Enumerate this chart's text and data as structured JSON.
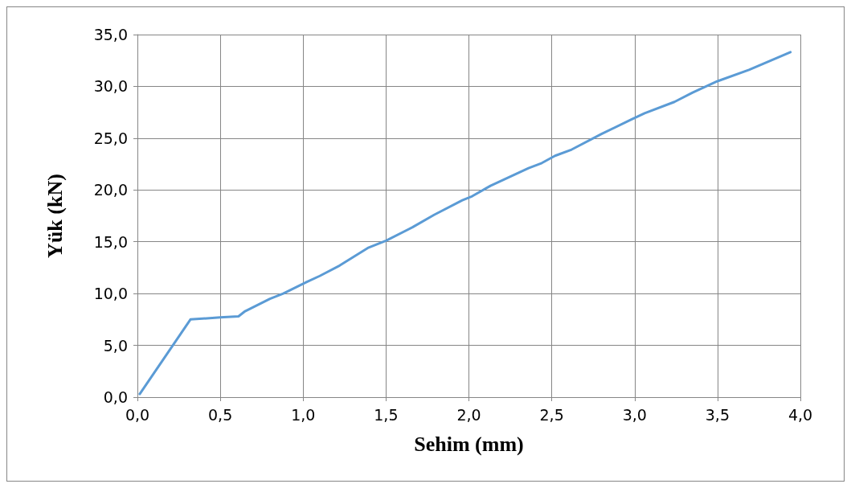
{
  "chart_data": {
    "type": "line",
    "xlabel": "Sehim (mm)",
    "ylabel": "Yük (kN)",
    "series": [
      {
        "color": "#5b9bd5",
        "x": [
          0.014,
          0.32,
          0.5,
          0.61,
          0.65,
          0.8,
          0.88,
          1.02,
          1.1,
          1.22,
          1.39,
          1.5,
          1.66,
          1.79,
          1.96,
          2.02,
          2.13,
          2.36,
          2.44,
          2.52,
          2.62,
          2.8,
          2.98,
          3.06,
          3.24,
          3.35,
          3.5,
          3.69,
          3.94
        ],
        "values": [
          0.3,
          7.5,
          7.7,
          7.8,
          8.3,
          9.5,
          10.0,
          11.1,
          11.7,
          12.7,
          14.4,
          15.1,
          16.4,
          17.6,
          19.0,
          19.4,
          20.4,
          22.1,
          22.6,
          23.3,
          23.9,
          25.4,
          26.8,
          27.4,
          28.5,
          29.4,
          30.5,
          31.6,
          33.3
        ]
      }
    ],
    "xlim": [
      0,
      4
    ],
    "ylim": [
      0,
      35
    ],
    "xticks": [
      {
        "value": 0,
        "label": "0,0"
      },
      {
        "value": 0.5,
        "label": "0,5"
      },
      {
        "value": 1,
        "label": "1,0"
      },
      {
        "value": 1.5,
        "label": "1,5"
      },
      {
        "value": 2,
        "label": "2,0"
      },
      {
        "value": 2.5,
        "label": "2,5"
      },
      {
        "value": 3,
        "label": "3,0"
      },
      {
        "value": 3.5,
        "label": "3,5"
      },
      {
        "value": 4,
        "label": "4,0"
      }
    ],
    "yticks": [
      {
        "value": 0,
        "label": "0,0"
      },
      {
        "value": 5,
        "label": "5,0"
      },
      {
        "value": 10,
        "label": "10,0"
      },
      {
        "value": 15,
        "label": "15,0"
      },
      {
        "value": 20,
        "label": "20,0"
      },
      {
        "value": 25,
        "label": "25,0"
      },
      {
        "value": 30,
        "label": "30,0"
      },
      {
        "value": 35,
        "label": "35,0"
      }
    ],
    "grid": true,
    "marker": "none",
    "line_style": "solid"
  }
}
